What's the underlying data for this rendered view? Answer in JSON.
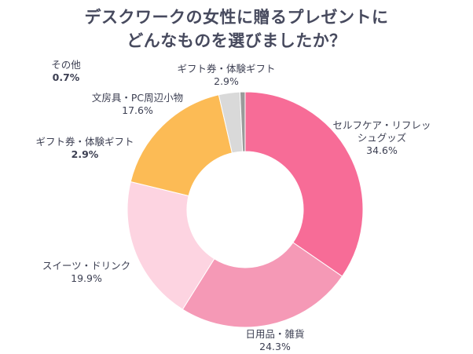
{
  "chart_data": {
    "type": "pie",
    "donut": true,
    "title": [
      "デスクワークの女性に贈るプレゼントに",
      "どんなものを選びましたか？"
    ],
    "slices": [
      {
        "label": "セルフケア・リフレッシュグッズ",
        "value": 34.6,
        "display": "34.6%",
        "color": "#F76C97"
      },
      {
        "label": "日用品・雑貨",
        "value": 24.3,
        "display": "24.3%",
        "color": "#F599B6"
      },
      {
        "label": "スイーツ・ドリンク",
        "value": 19.9,
        "display": "19.9%",
        "color": "#FDD4E1"
      },
      {
        "label": "文房具・PC周辺小物",
        "value": 17.6,
        "display": "17.6%",
        "color": "#FCBB55"
      },
      {
        "label": "ギフト券・体験ギフト",
        "value": 2.9,
        "display": "2.9%",
        "color": "#D9D9D9"
      },
      {
        "label": "その他",
        "value": 0.7,
        "display": "0.7%",
        "color": "#9A9A9A"
      }
    ],
    "extra_labels": [
      {
        "label": "ギフト券・体験ギフト",
        "display": "2.9%"
      }
    ],
    "legend": "none"
  }
}
